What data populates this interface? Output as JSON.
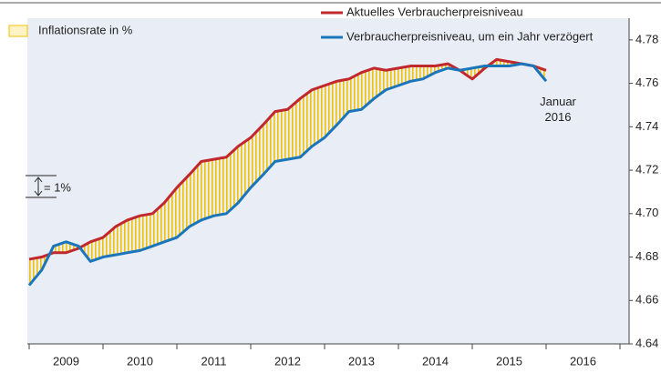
{
  "chart_data": {
    "type": "line",
    "legend": {
      "band": "Inflationsrate in %"
    },
    "annotation": "Januar 2016",
    "scale_note": "= 1%",
    "categories": [
      "2009",
      "2010",
      "2011",
      "2012",
      "2013",
      "2014",
      "2015",
      "2016"
    ],
    "x": [
      2009,
      2009.17,
      2009.33,
      2009.5,
      2009.67,
      2009.83,
      2010,
      2010.17,
      2010.33,
      2010.5,
      2010.67,
      2010.83,
      2011,
      2011.17,
      2011.33,
      2011.5,
      2011.67,
      2011.83,
      2012,
      2012.17,
      2012.33,
      2012.5,
      2012.67,
      2012.83,
      2013,
      2013.17,
      2013.33,
      2013.5,
      2013.67,
      2013.83,
      2014,
      2014.17,
      2014.33,
      2014.5,
      2014.67,
      2014.83,
      2015,
      2015.17,
      2015.33,
      2015.5,
      2015.67,
      2015.83,
      2016
    ],
    "series": [
      {
        "name": "Aktuelles Verbraucherpreisniveau",
        "color": "#c0282d",
        "values": [
          4.679,
          4.68,
          4.682,
          4.682,
          4.684,
          4.687,
          4.689,
          4.694,
          4.697,
          4.699,
          4.7,
          4.705,
          4.712,
          4.718,
          4.724,
          4.725,
          4.726,
          4.731,
          4.735,
          4.741,
          4.747,
          4.748,
          4.753,
          4.757,
          4.759,
          4.761,
          4.762,
          4.765,
          4.767,
          4.766,
          4.767,
          4.768,
          4.768,
          4.768,
          4.769,
          4.766,
          4.762,
          4.767,
          4.771,
          4.77,
          4.769,
          4.768,
          4.766
        ]
      },
      {
        "name": "Verbraucherpreisniveau, um ein Jahr verzögert",
        "color": "#1b75bb",
        "values": [
          4.667,
          4.674,
          4.685,
          4.687,
          4.685,
          4.678,
          4.68,
          4.681,
          4.682,
          4.683,
          4.685,
          4.687,
          4.689,
          4.694,
          4.697,
          4.699,
          4.7,
          4.705,
          4.712,
          4.718,
          4.724,
          4.725,
          4.726,
          4.731,
          4.735,
          4.741,
          4.747,
          4.748,
          4.753,
          4.757,
          4.759,
          4.761,
          4.762,
          4.765,
          4.767,
          4.766,
          4.767,
          4.768,
          4.768,
          4.768,
          4.769,
          4.768,
          4.761
        ]
      }
    ],
    "band_color": "#f2c200",
    "xlim": [
      2009,
      2017
    ],
    "xticks": [
      2009,
      2010,
      2011,
      2012,
      2013,
      2014,
      2015,
      2016,
      2017
    ],
    "ylim": [
      4.64,
      4.79
    ],
    "yticks": [
      {
        "value": 4.64,
        "label": "4.64"
      },
      {
        "value": 4.66,
        "label": "4.66"
      },
      {
        "value": 4.68,
        "label": "4.68"
      },
      {
        "value": 4.7,
        "label": "4.70"
      },
      {
        "value": 4.72,
        "label": "4.72"
      },
      {
        "value": 4.74,
        "label": "4.74"
      },
      {
        "value": 4.76,
        "label": "4.76"
      },
      {
        "value": 4.78,
        "label": "4.78"
      }
    ]
  }
}
